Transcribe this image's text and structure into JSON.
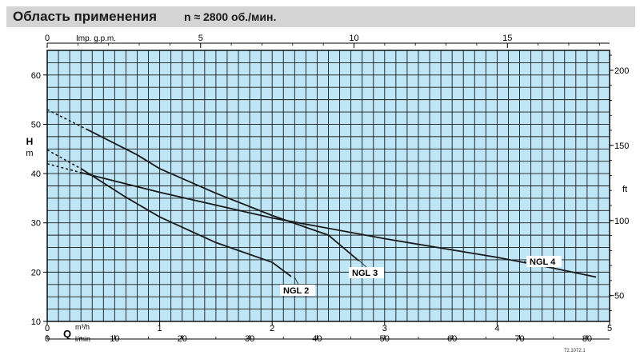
{
  "header": {
    "title": "Область применения",
    "speed": "n ≈ 2800 об./мин."
  },
  "reference_code": "72.1072.1",
  "colors": {
    "plot_background": "#bfe6f7",
    "grid": "#1a1a1a",
    "curve": "#1a1a1a",
    "header_band": "#d4d4d4"
  },
  "chart_data": {
    "type": "line",
    "title": "",
    "xlabel": "Q",
    "ylabel": "H",
    "xlim": [
      0,
      5
    ],
    "ylim": [
      10,
      65
    ],
    "grid": true,
    "axes": {
      "left": {
        "label": "H",
        "unit": "m",
        "ticks": [
          10,
          20,
          30,
          40,
          50,
          60
        ]
      },
      "right": {
        "label": "ft",
        "ticks": [
          50,
          100,
          150,
          200
        ]
      },
      "top": {
        "label": "Imp. g.p.m.",
        "ticks": [
          0,
          5,
          10,
          15
        ]
      },
      "bottom_m3h": {
        "label": "m³/h",
        "ticks": [
          0,
          1,
          2,
          3,
          4,
          5
        ]
      },
      "bottom_lmin": {
        "label": "l/min",
        "ticks": [
          0,
          10,
          20,
          30,
          40,
          50,
          60,
          70,
          80
        ]
      }
    },
    "series": [
      {
        "name": "NGL 2",
        "points": [
          [
            0.0,
            44.8
          ],
          [
            0.3,
            41.0
          ],
          [
            0.7,
            35.2
          ],
          [
            1.0,
            31.2
          ],
          [
            1.5,
            26.0
          ],
          [
            2.0,
            22.0
          ],
          [
            2.17,
            19.1
          ]
        ],
        "dashed_until_x": 0.3
      },
      {
        "name": "NGL 3",
        "points": [
          [
            0.0,
            53.0
          ],
          [
            0.35,
            49.0
          ],
          [
            0.8,
            43.8
          ],
          [
            1.0,
            41.0
          ],
          [
            1.5,
            36.0
          ],
          [
            2.0,
            31.5
          ],
          [
            2.5,
            27.5
          ],
          [
            2.77,
            22.3
          ]
        ],
        "dashed_until_x": 0.35
      },
      {
        "name": "NGL 4",
        "points": [
          [
            0.0,
            42.0
          ],
          [
            0.3,
            40.2
          ],
          [
            1.0,
            36.2
          ],
          [
            2.0,
            31.0
          ],
          [
            3.0,
            26.8
          ],
          [
            4.0,
            23.0
          ],
          [
            4.5,
            20.8
          ],
          [
            4.88,
            19.0
          ]
        ],
        "dashed_until_x": 0.3
      }
    ],
    "labels": [
      {
        "text": "NGL 2",
        "series": "NGL 2"
      },
      {
        "text": "NGL 3",
        "series": "NGL 3"
      },
      {
        "text": "NGL 4",
        "series": "NGL 4"
      }
    ]
  }
}
